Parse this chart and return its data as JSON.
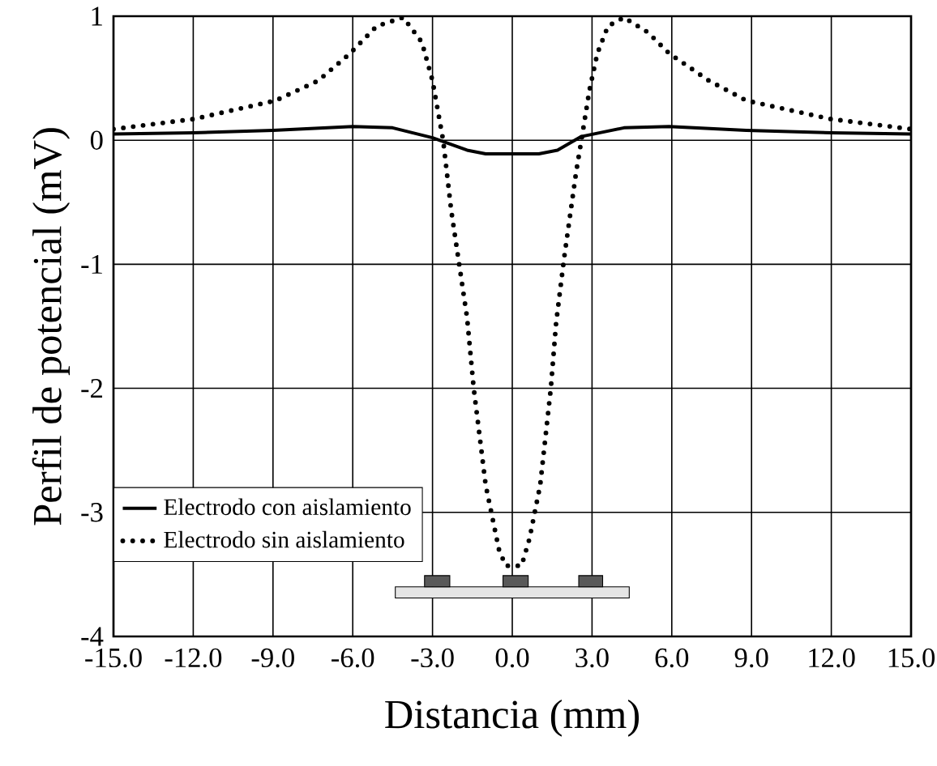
{
  "chart_data": {
    "type": "line",
    "xlabel": "Distancia (mm)",
    "ylabel": "Perfil de potencial (mV)",
    "xlim": [
      -15,
      15
    ],
    "ylim": [
      -4,
      1
    ],
    "xticks": [
      {
        "value": -15,
        "label": "-15.0"
      },
      {
        "value": -12,
        "label": "-12.0"
      },
      {
        "value": -9,
        "label": "-9.0"
      },
      {
        "value": -6,
        "label": "-6.0"
      },
      {
        "value": -3,
        "label": "-3.0"
      },
      {
        "value": 0,
        "label": "0.0"
      },
      {
        "value": 3,
        "label": "3.0"
      },
      {
        "value": 6,
        "label": "6.0"
      },
      {
        "value": 9,
        "label": "9.0"
      },
      {
        "value": 12,
        "label": "12.0"
      },
      {
        "value": 15,
        "label": "15.0"
      }
    ],
    "yticks": [
      -4,
      -3,
      -2,
      -1,
      0,
      1
    ],
    "grid": true,
    "legend": "bottom left",
    "marker": "none",
    "series": [
      {
        "name": "Electrodo con aislamiento",
        "color": "#000000",
        "line_style": "solid",
        "x": [
          -15,
          -12,
          -9,
          -6,
          -4.5,
          -3,
          -1.7,
          -1,
          0,
          1,
          1.7,
          2.6,
          4.2,
          5.9,
          8.8,
          12,
          15
        ],
        "values": [
          0.05,
          0.06,
          0.08,
          0.11,
          0.1,
          0.02,
          -0.08,
          -0.11,
          -0.11,
          -0.11,
          -0.08,
          0.03,
          0.1,
          0.11,
          0.08,
          0.06,
          0.05
        ]
      },
      {
        "name": "Electrodo sin aislamiento",
        "color": "#000000",
        "line_style": "dotted",
        "x": [
          -15,
          -12,
          -8.9,
          -7.3,
          -6.1,
          -5.1,
          -4.1,
          -3.4,
          -3,
          -2.6,
          -2.3,
          -1.7,
          -1.45,
          -1.0,
          -0.5,
          -0.25,
          0.35,
          0.65,
          1.05,
          1.45,
          1.65,
          1.95,
          2.4,
          2.6,
          2.9,
          3.2,
          3.6,
          4.2,
          5.1,
          5.9,
          7.4,
          8.8,
          12,
          15
        ],
        "values": [
          0.09,
          0.17,
          0.32,
          0.48,
          0.7,
          0.92,
          0.99,
          0.79,
          0.48,
          0,
          -0.56,
          -1.43,
          -2.0,
          -2.78,
          -3.3,
          -3.43,
          -3.43,
          -3.21,
          -2.78,
          -2.0,
          -1.47,
          -0.95,
          -0.26,
          0,
          0.4,
          0.7,
          0.92,
          0.99,
          0.87,
          0.7,
          0.48,
          0.32,
          0.17,
          0.09
        ]
      }
    ]
  }
}
